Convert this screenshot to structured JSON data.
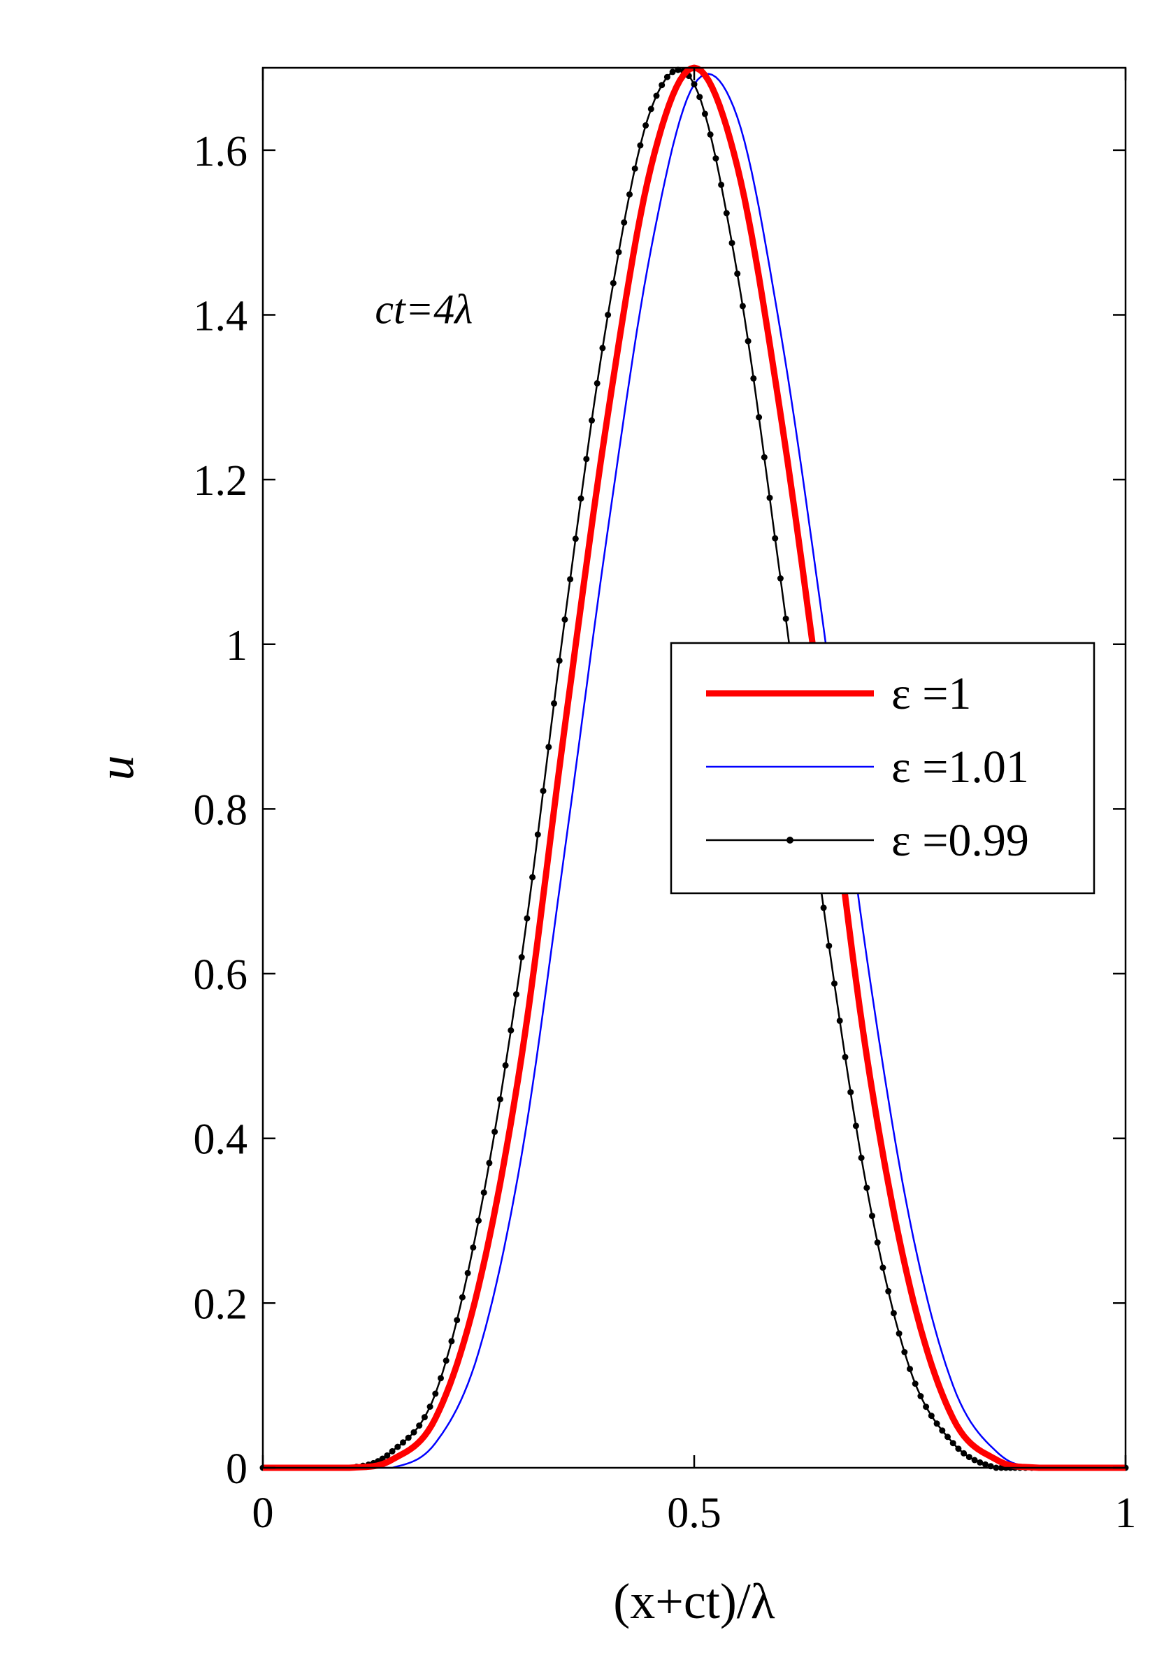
{
  "chart_data": {
    "type": "line",
    "xlabel": "(x+ct)/λ",
    "ylabel": "u",
    "xlim": [
      0,
      1
    ],
    "ylim": [
      0,
      1.7
    ],
    "xticks": [
      0,
      0.5,
      1
    ],
    "xtick_labels": [
      "0",
      "0.5",
      "1"
    ],
    "yticks": [
      0,
      0.2,
      0.4,
      0.6,
      0.8,
      1.0,
      1.2,
      1.4,
      1.6
    ],
    "ytick_labels": [
      "0",
      "0.2",
      "0.4",
      "0.6",
      "0.8",
      "1",
      "1.2",
      "1.4",
      "1.6"
    ],
    "grid": false,
    "legend_position": "right",
    "annotation": {
      "text": "ct=4λ",
      "x": 0.13,
      "y": 1.39
    },
    "series": [
      {
        "name": "ε =1",
        "color": "#ff0000",
        "marker": "none",
        "x": [
          0,
          0.1,
          0.15,
          0.2,
          0.25,
          0.3,
          0.35,
          0.4,
          0.45,
          0.5,
          0.55,
          0.6,
          0.65,
          0.7,
          0.75,
          0.8,
          0.85,
          0.9,
          1.0
        ],
        "y": [
          0,
          0,
          0.01,
          0.06,
          0.22,
          0.5,
          0.9,
          1.28,
          1.58,
          1.7,
          1.58,
          1.28,
          0.9,
          0.5,
          0.22,
          0.06,
          0.01,
          0,
          0
        ]
      },
      {
        "name": "ε =1.01",
        "color": "#0000ff",
        "marker": "none",
        "x": [
          0,
          0.1,
          0.15,
          0.2,
          0.25,
          0.3,
          0.35,
          0.4,
          0.45,
          0.5,
          0.55,
          0.6,
          0.65,
          0.7,
          0.75,
          0.8,
          0.85,
          0.9,
          1.0
        ],
        "y": [
          0,
          0,
          0,
          0.03,
          0.14,
          0.38,
          0.75,
          1.14,
          1.48,
          1.68,
          1.64,
          1.38,
          1.02,
          0.62,
          0.3,
          0.1,
          0.02,
          0,
          0
        ]
      },
      {
        "name": "ε =0.99",
        "color": "#000000",
        "marker": "dot",
        "x": [
          0,
          0.1,
          0.15,
          0.2,
          0.25,
          0.3,
          0.35,
          0.4,
          0.45,
          0.5,
          0.55,
          0.6,
          0.65,
          0.7,
          0.75,
          0.8,
          0.85,
          0.9,
          1.0
        ],
        "y": [
          0,
          0,
          0.02,
          0.09,
          0.3,
          0.62,
          1.03,
          1.4,
          1.65,
          1.68,
          1.45,
          1.08,
          0.68,
          0.34,
          0.12,
          0.03,
          0,
          0,
          0
        ]
      }
    ]
  }
}
